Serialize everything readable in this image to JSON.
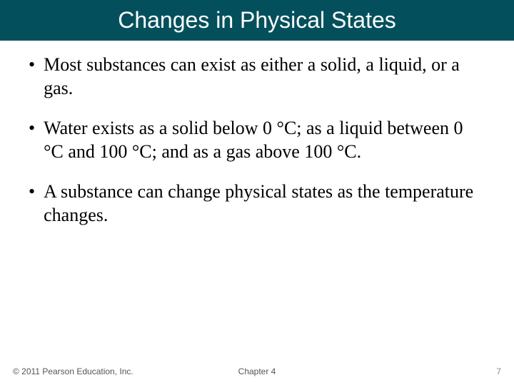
{
  "slide": {
    "title": "Changes in Physical States",
    "title_background_color": "#03505c",
    "title_text_color": "#ffffff",
    "title_font_family": "Arial",
    "title_font_size": 32,
    "body_font_family": "Times New Roman",
    "body_font_size": 26,
    "body_text_color": "#000000",
    "background_color": "#ffffff",
    "bullets": [
      "Most substances can exist as either a solid, a liquid, or a gas.",
      "Water exists as a solid below 0 °C; as a liquid between 0 °C and 100 °C; and as a gas above 100 °C.",
      "A substance can change physical states as the temperature changes."
    ]
  },
  "footer": {
    "copyright": "© 2011 Pearson Education, Inc.",
    "chapter": "Chapter 4",
    "page_number": "7",
    "font_size": 12,
    "text_color": "#555555"
  }
}
